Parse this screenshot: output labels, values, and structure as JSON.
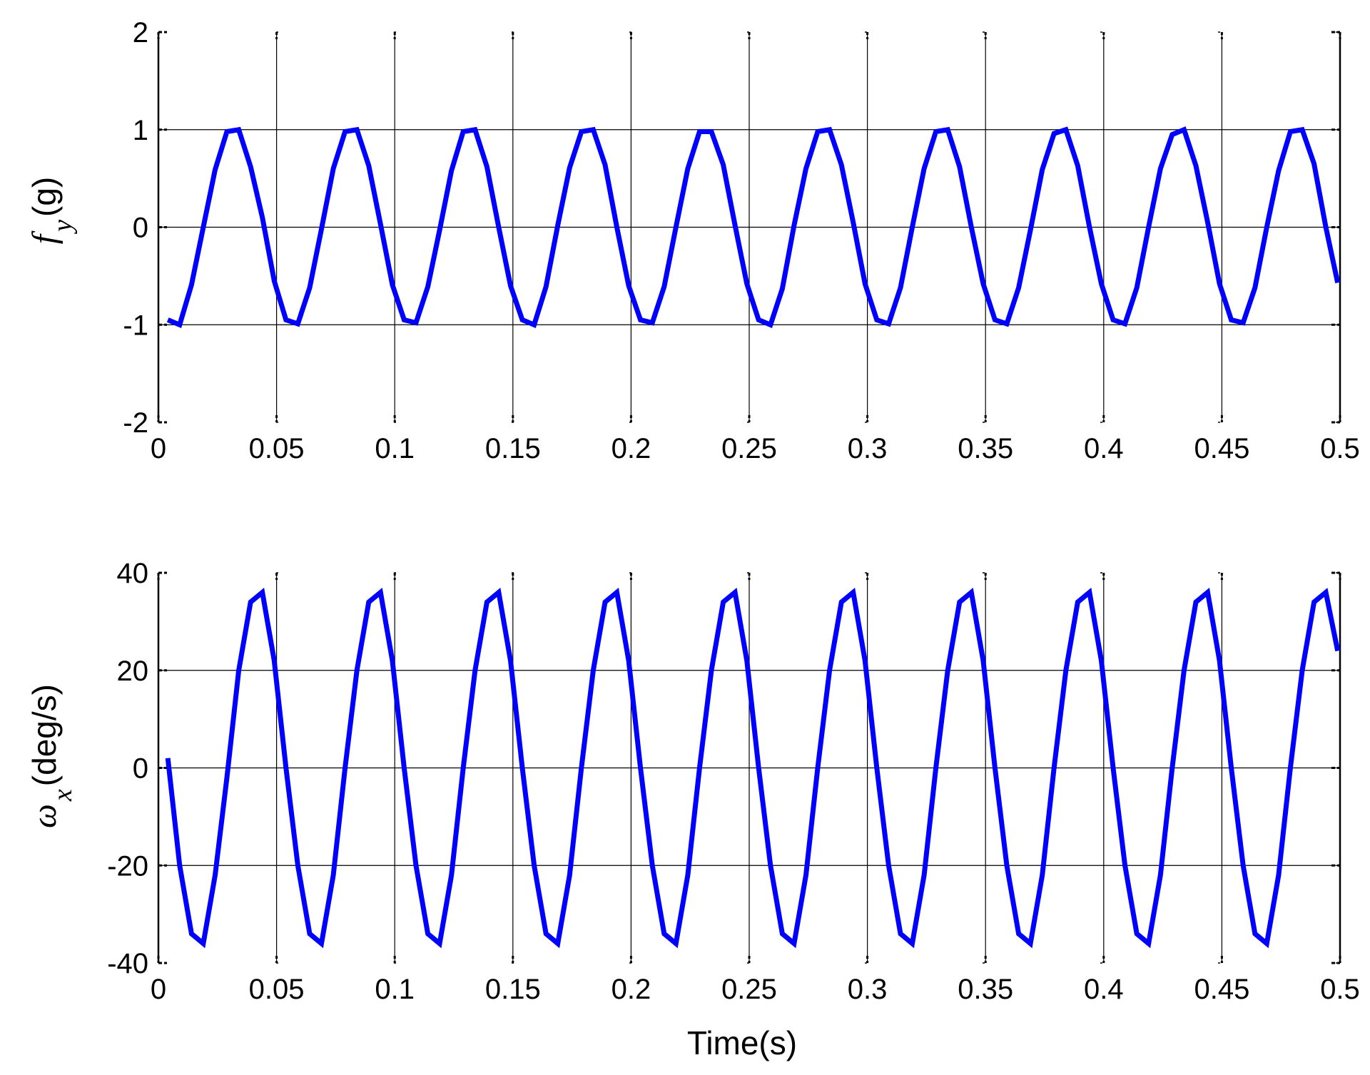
{
  "chart_data": [
    {
      "type": "line",
      "ylabel": {
        "symbol": "f",
        "subscript": "y",
        "unit": "(g)"
      },
      "xlim": [
        0,
        0.5
      ],
      "ylim": [
        -2,
        2
      ],
      "xticks": [
        0,
        0.05,
        0.1,
        0.15,
        0.2,
        0.25,
        0.3,
        0.35,
        0.4,
        0.45,
        0.5
      ],
      "xtick_labels": [
        "0",
        "0.05",
        "0.1",
        "0.15",
        "0.2",
        "0.25",
        "0.3",
        "0.35",
        "0.4",
        "0.45",
        "0.5"
      ],
      "yticks": [
        -2,
        -1,
        0,
        1,
        2
      ],
      "ytick_labels": [
        "-2",
        "-1",
        "0",
        "1",
        "2"
      ],
      "grid": true,
      "series": [
        {
          "color": "#0000ff",
          "x": [
            0.004,
            0.009,
            0.014,
            0.019,
            0.024,
            0.029,
            0.034,
            0.039,
            0.044,
            0.049,
            0.054,
            0.059,
            0.064,
            0.069,
            0.074,
            0.079,
            0.084,
            0.089,
            0.094,
            0.099,
            0.104,
            0.109,
            0.114,
            0.119,
            0.124,
            0.129,
            0.134,
            0.139,
            0.144,
            0.149,
            0.154,
            0.159,
            0.164,
            0.169,
            0.174,
            0.179,
            0.184,
            0.189,
            0.194,
            0.199,
            0.204,
            0.209,
            0.214,
            0.219,
            0.224,
            0.229,
            0.234,
            0.239,
            0.244,
            0.249,
            0.254,
            0.259,
            0.264,
            0.269,
            0.274,
            0.279,
            0.284,
            0.289,
            0.294,
            0.299,
            0.304,
            0.309,
            0.314,
            0.319,
            0.324,
            0.329,
            0.334,
            0.339,
            0.344,
            0.349,
            0.354,
            0.359,
            0.364,
            0.369,
            0.374,
            0.379,
            0.384,
            0.389,
            0.394,
            0.399,
            0.404,
            0.409,
            0.414,
            0.419,
            0.424,
            0.429,
            0.434,
            0.439,
            0.444,
            0.449,
            0.454,
            0.459,
            0.464,
            0.469,
            0.474,
            0.479,
            0.484,
            0.489,
            0.494,
            0.499
          ],
          "y": [
            -0.95,
            -1.0,
            -0.59,
            0.0,
            0.59,
            0.98,
            1.0,
            0.62,
            0.1,
            -0.55,
            -0.95,
            -0.99,
            -0.62,
            -0.02,
            0.6,
            0.98,
            1.0,
            0.63,
            0.03,
            -0.59,
            -0.95,
            -0.98,
            -0.61,
            -0.03,
            0.58,
            0.98,
            1.0,
            0.62,
            0.0,
            -0.6,
            -0.95,
            -1.0,
            -0.61,
            0.02,
            0.61,
            0.98,
            1.0,
            0.64,
            0.0,
            -0.6,
            -0.95,
            -0.98,
            -0.61,
            0.0,
            0.6,
            0.98,
            0.98,
            0.64,
            0.02,
            -0.58,
            -0.95,
            -1.0,
            -0.63,
            0.02,
            0.6,
            0.98,
            1.0,
            0.64,
            0.05,
            -0.58,
            -0.95,
            -0.99,
            -0.62,
            0.0,
            0.6,
            0.98,
            1.0,
            0.62,
            0.0,
            -0.58,
            -0.95,
            -0.99,
            -0.62,
            -0.03,
            0.59,
            0.96,
            1.0,
            0.63,
            0.0,
            -0.58,
            -0.95,
            -0.99,
            -0.62,
            0.0,
            0.6,
            0.95,
            1.0,
            0.63,
            0.05,
            -0.58,
            -0.95,
            -0.98,
            -0.62,
            0.0,
            0.58,
            0.98,
            1.0,
            0.65,
            0.0,
            -0.57
          ]
        }
      ]
    },
    {
      "type": "line",
      "xlabel": "Time(s)",
      "ylabel": {
        "symbol": "ω",
        "subscript": "x",
        "unit": "(deg/s)"
      },
      "xlim": [
        0,
        0.5
      ],
      "ylim": [
        -40,
        40
      ],
      "xticks": [
        0,
        0.05,
        0.1,
        0.15,
        0.2,
        0.25,
        0.3,
        0.35,
        0.4,
        0.45,
        0.5
      ],
      "xtick_labels": [
        "0",
        "0.05",
        "0.1",
        "0.15",
        "0.2",
        "0.25",
        "0.3",
        "0.35",
        "0.4",
        "0.45",
        "0.5"
      ],
      "yticks": [
        -40,
        -20,
        0,
        20,
        40
      ],
      "ytick_labels": [
        "-40",
        "-20",
        "0",
        "20",
        "40"
      ],
      "grid": true,
      "series": [
        {
          "color": "#0000ff",
          "x": [
            0.004,
            0.009,
            0.014,
            0.019,
            0.024,
            0.029,
            0.034,
            0.039,
            0.044,
            0.049,
            0.054,
            0.059,
            0.064,
            0.069,
            0.074,
            0.079,
            0.084,
            0.089,
            0.094,
            0.099,
            0.104,
            0.109,
            0.114,
            0.119,
            0.124,
            0.129,
            0.134,
            0.139,
            0.144,
            0.149,
            0.154,
            0.159,
            0.164,
            0.169,
            0.174,
            0.179,
            0.184,
            0.189,
            0.194,
            0.199,
            0.204,
            0.209,
            0.214,
            0.219,
            0.224,
            0.229,
            0.234,
            0.239,
            0.244,
            0.249,
            0.254,
            0.259,
            0.264,
            0.269,
            0.274,
            0.279,
            0.284,
            0.289,
            0.294,
            0.299,
            0.304,
            0.309,
            0.314,
            0.319,
            0.324,
            0.329,
            0.334,
            0.339,
            0.344,
            0.349,
            0.354,
            0.359,
            0.364,
            0.369,
            0.374,
            0.379,
            0.384,
            0.389,
            0.394,
            0.399,
            0.404,
            0.409,
            0.414,
            0.419,
            0.424,
            0.429,
            0.434,
            0.439,
            0.444,
            0.449,
            0.454,
            0.459,
            0.464,
            0.469,
            0.474,
            0.479,
            0.484,
            0.489,
            0.494,
            0.499
          ],
          "y": [
            2,
            -20,
            -34,
            -36,
            -22,
            -2,
            20,
            34,
            36,
            22,
            0,
            -20,
            -34,
            -36,
            -22,
            0,
            20,
            34,
            36,
            22,
            0,
            -20,
            -34,
            -36,
            -22,
            0,
            20,
            34,
            36,
            22,
            0,
            -20,
            -34,
            -36,
            -22,
            0,
            20,
            34,
            36,
            22,
            0,
            -20,
            -34,
            -36,
            -22,
            0,
            20,
            34,
            36,
            22,
            0,
            -20,
            -34,
            -36,
            -22,
            0,
            20,
            34,
            36,
            22,
            0,
            -20,
            -34,
            -36,
            -22,
            0,
            20,
            34,
            36,
            22,
            0,
            -20,
            -34,
            -36,
            -22,
            0,
            20,
            34,
            36,
            22,
            0,
            -20,
            -34,
            -36,
            -22,
            0,
            20,
            34,
            36,
            22,
            0,
            -20,
            -34,
            -36,
            -22,
            0,
            20,
            34,
            36,
            24
          ]
        }
      ]
    }
  ]
}
